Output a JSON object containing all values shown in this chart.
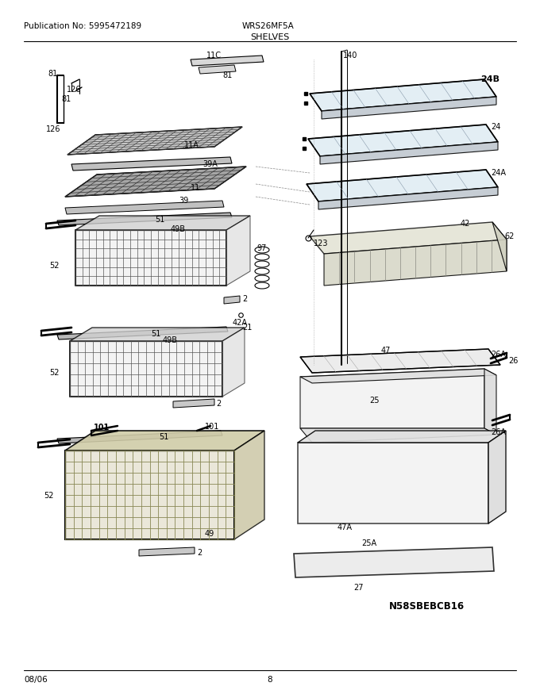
{
  "title": "SHELVES",
  "pub_no": "Publication No: 5995472189",
  "model": "WRS26MF5A",
  "date": "08/06",
  "page": "8",
  "diagram_id": "N58SBEBCB16",
  "bg_color": "#ffffff",
  "line_color": "#000000",
  "text_color": "#000000",
  "figsize": [
    6.8,
    8.8
  ],
  "dpi": 100
}
